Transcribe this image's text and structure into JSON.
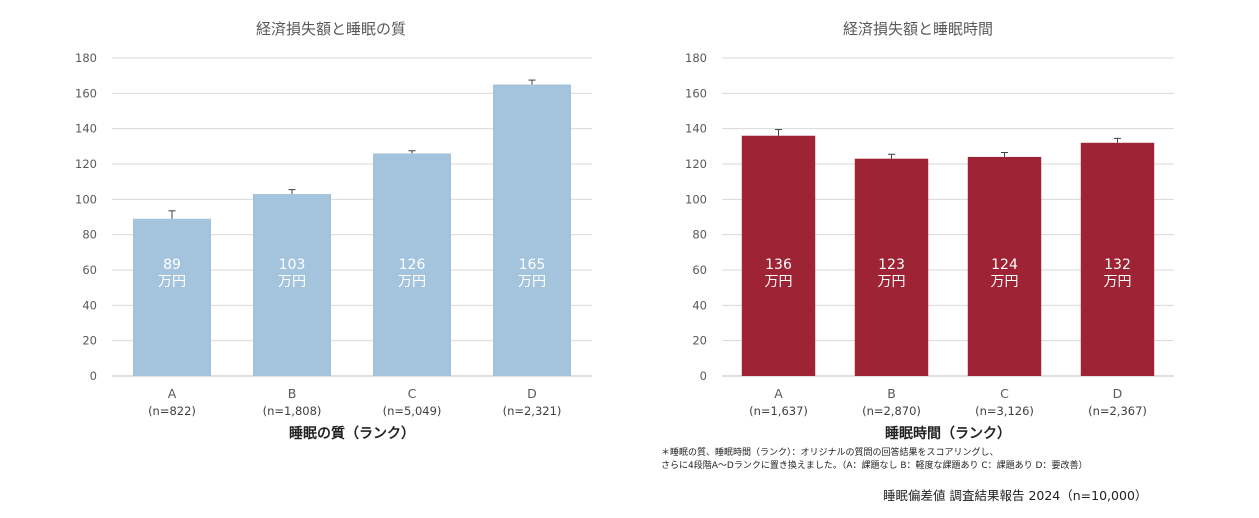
{
  "chart_data": [
    {
      "type": "bar",
      "title": "経済損失額と睡眠の質",
      "xlabel": "睡眠の質（ランク）",
      "ylabel": "",
      "ylim": [
        0,
        180
      ],
      "yticks": [
        0,
        20,
        40,
        60,
        80,
        100,
        120,
        140,
        160,
        180
      ],
      "categories": [
        "A",
        "B",
        "C",
        "D"
      ],
      "sample_sizes": [
        "(n=822)",
        "(n=1,808)",
        "(n=5,049)",
        "(n=2,321)"
      ],
      "values": [
        89,
        103,
        126,
        165
      ],
      "error_upper": [
        93.5,
        105.5,
        127.5,
        167.5
      ],
      "value_unit": "万円",
      "bar_color": "#a4c4de",
      "grid": true
    },
    {
      "type": "bar",
      "title": "経済損失額と睡眠時間",
      "xlabel": "睡眠時間（ランク）",
      "ylabel": "",
      "ylim": [
        0,
        180
      ],
      "yticks": [
        0,
        20,
        40,
        60,
        80,
        100,
        120,
        140,
        160,
        180
      ],
      "categories": [
        "A",
        "B",
        "C",
        "D"
      ],
      "sample_sizes": [
        "(n=1,637)",
        "(n=2,870)",
        "(n=3,126)",
        "(n=2,367)"
      ],
      "values": [
        136,
        123,
        124,
        132
      ],
      "error_upper": [
        139.5,
        125.5,
        126.5,
        134.5
      ],
      "value_unit": "万円",
      "bar_color": "#9e2335",
      "grid": true
    }
  ],
  "footnote": {
    "line1": "＊睡眠の質、睡眠時間（ランク）：オリジナルの質問の回答結果をスコアリングし、",
    "line2": "さらに4段階A～Dランクに置き換えました。（A：課題なし B：軽度な課題あり C：課題あり D：要改善）"
  },
  "source": "睡眠偏差値 調査結果報告 2024（n=10,000）"
}
